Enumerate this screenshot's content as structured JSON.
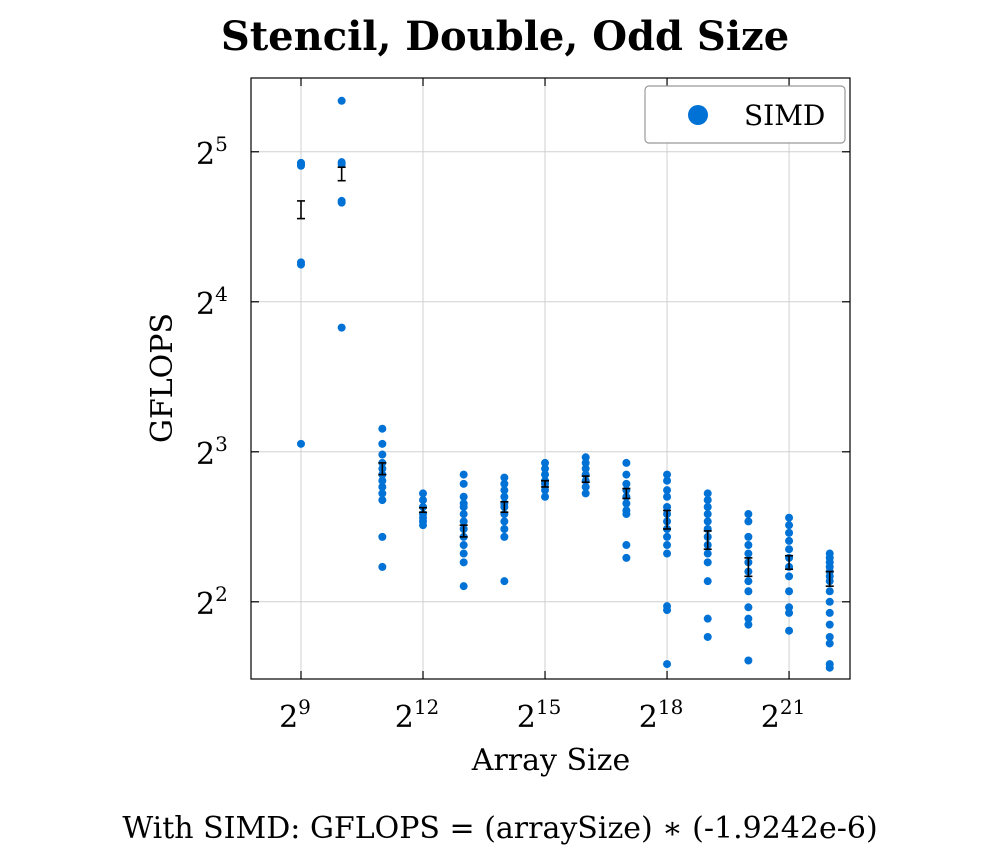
{
  "colors": {
    "series": "#0072d6",
    "errorbar": "#000000",
    "grid": "#d0d0d0",
    "frame": "#000000"
  },
  "footer": "With SIMD:  GFLOPS = (arraySize) ∗ (-1.9242e-6)",
  "chart_data": {
    "type": "scatter",
    "title": "Stencil, Double, Odd Size",
    "xlabel": "Array Size",
    "ylabel": "GFLOPS",
    "x_scale": "log2",
    "y_scale": "log2",
    "xlim": [
      2.5,
      8.3
    ],
    "ylim": [
      2.8,
      45
    ],
    "grid": true,
    "legend_position": "top-right",
    "x_ticks": [
      {
        "base": "2",
        "exp": "9",
        "value": 512
      },
      {
        "base": "2",
        "exp": "12",
        "value": 4096
      },
      {
        "base": "2",
        "exp": "15",
        "value": 32768
      },
      {
        "base": "2",
        "exp": "18",
        "value": 262144
      },
      {
        "base": "2",
        "exp": "21",
        "value": 2097152
      }
    ],
    "y_ticks": [
      {
        "base": "2",
        "exp": "2",
        "value": 4
      },
      {
        "base": "2",
        "exp": "3",
        "value": 8
      },
      {
        "base": "2",
        "exp": "4",
        "value": 16
      },
      {
        "base": "2",
        "exp": "5",
        "value": 32
      }
    ],
    "series": [
      {
        "name": "SIMD",
        "points": [
          {
            "x": 512,
            "y": [
              30.0,
              30.2,
              30.4,
              19.0,
              19.2,
              8.3
            ]
          },
          {
            "x": 1024,
            "y": [
              40.5,
              30.5,
              30.2,
              25.5,
              25.3,
              14.2
            ]
          },
          {
            "x": 2048,
            "y": [
              8.9,
              8.3,
              7.9,
              7.6,
              7.4,
              7.2,
              7.0,
              6.8,
              6.6,
              6.4,
              5.4,
              4.7
            ]
          },
          {
            "x": 4096,
            "y": [
              6.6,
              6.4,
              6.2,
              6.0,
              5.9,
              5.8,
              5.7
            ]
          },
          {
            "x": 8192,
            "y": [
              7.2,
              6.9,
              6.5,
              6.3,
              6.2,
              6.0,
              5.8,
              5.6,
              5.4,
              5.2,
              5.0,
              4.8,
              4.3
            ]
          },
          {
            "x": 16384,
            "y": [
              7.1,
              6.9,
              6.7,
              6.5,
              6.3,
              6.2,
              6.0,
              5.8,
              5.6,
              5.4,
              4.4
            ]
          },
          {
            "x": 32768,
            "y": [
              7.6,
              7.4,
              7.2,
              7.0,
              6.9,
              6.7,
              6.5
            ]
          },
          {
            "x": 65536,
            "y": [
              7.8,
              7.6,
              7.4,
              7.2,
              7.0,
              6.8,
              6.6
            ]
          },
          {
            "x": 131072,
            "y": [
              7.6,
              7.2,
              6.9,
              6.7,
              6.5,
              6.3,
              6.1,
              6.0,
              5.2,
              4.9
            ]
          },
          {
            "x": 262144,
            "y": [
              7.2,
              7.0,
              6.7,
              6.5,
              6.2,
              6.0,
              5.8,
              5.6,
              5.4,
              5.2,
              5.0,
              3.92,
              3.85,
              3.0
            ]
          },
          {
            "x": 524288,
            "y": [
              6.6,
              6.4,
              6.2,
              6.0,
              5.8,
              5.6,
              5.4,
              5.2,
              5.0,
              4.8,
              4.4,
              3.7,
              3.4
            ]
          },
          {
            "x": 1048576,
            "y": [
              6.0,
              5.8,
              5.4,
              5.2,
              5.0,
              4.8,
              4.6,
              4.4,
              4.2,
              3.9,
              3.7,
              3.6,
              3.05
            ]
          },
          {
            "x": 2097152,
            "y": [
              5.9,
              5.7,
              5.5,
              5.3,
              5.1,
              4.9,
              4.7,
              4.5,
              4.2,
              3.9,
              3.8,
              3.5
            ]
          },
          {
            "x": 4194304,
            "y": [
              5.0,
              4.9,
              4.8,
              4.7,
              4.6,
              4.5,
              4.4,
              4.2,
              4.0,
              3.8,
              3.6,
              3.4,
              3.3,
              3.0,
              2.95
            ]
          }
        ],
        "error_bars": [
          {
            "x": 512,
            "mean": 24.5,
            "low": 23.5,
            "high": 25.5
          },
          {
            "x": 1024,
            "mean": 28.8,
            "low": 28.0,
            "high": 29.8
          },
          {
            "x": 2048,
            "mean": 7.4,
            "low": 7.2,
            "high": 7.6
          },
          {
            "x": 4096,
            "mean": 6.1,
            "low": 6.05,
            "high": 6.18
          },
          {
            "x": 8192,
            "mean": 5.55,
            "low": 5.4,
            "high": 5.7
          },
          {
            "x": 16384,
            "mean": 6.2,
            "low": 6.05,
            "high": 6.35
          },
          {
            "x": 32768,
            "mean": 6.9,
            "low": 6.8,
            "high": 7.0
          },
          {
            "x": 65536,
            "mean": 7.05,
            "low": 6.95,
            "high": 7.15
          },
          {
            "x": 131072,
            "mean": 6.6,
            "low": 6.45,
            "high": 6.75
          },
          {
            "x": 262144,
            "mean": 5.85,
            "low": 5.6,
            "high": 6.1
          },
          {
            "x": 524288,
            "mean": 5.3,
            "low": 5.1,
            "high": 5.55
          },
          {
            "x": 1048576,
            "mean": 4.7,
            "low": 4.5,
            "high": 4.9
          },
          {
            "x": 2097152,
            "mean": 4.8,
            "low": 4.65,
            "high": 4.95
          },
          {
            "x": 4194304,
            "mean": 4.45,
            "low": 4.3,
            "high": 4.6
          }
        ]
      }
    ]
  }
}
